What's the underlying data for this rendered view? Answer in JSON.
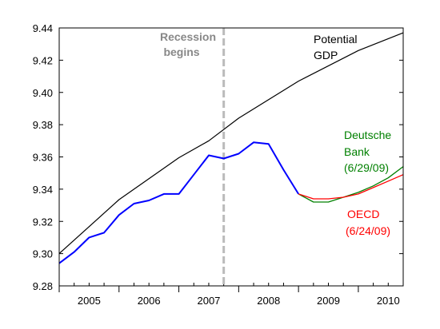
{
  "chart_data": {
    "type": "line",
    "xlim": [
      2005.0,
      2010.75
    ],
    "ylim": [
      9.28,
      9.44
    ],
    "y_ticks": [
      "9.28",
      "9.30",
      "9.32",
      "9.34",
      "9.36",
      "9.38",
      "9.40",
      "9.42",
      "9.44"
    ],
    "x_tick_labels": [
      {
        "label": "2005",
        "x": 2005.5
      },
      {
        "label": "2006",
        "x": 2006.5
      },
      {
        "label": "2007",
        "x": 2007.5
      },
      {
        "label": "2008",
        "x": 2008.5
      },
      {
        "label": "2009",
        "x": 2009.5
      },
      {
        "label": "2010",
        "x": 2010.5
      }
    ],
    "grid": false,
    "series": [
      {
        "key": "potential",
        "color": "#000000",
        "x": [
          2005.0,
          2006.0,
          2007.0,
          2007.5,
          2008.0,
          2009.0,
          2010.0,
          2010.75
        ],
        "y": [
          9.3,
          9.3335,
          9.3595,
          9.37,
          9.384,
          9.407,
          9.426,
          9.437
        ]
      },
      {
        "key": "actual",
        "color": "#0000ff",
        "x": [
          2005.0,
          2005.25,
          2005.5,
          2005.75,
          2006.0,
          2006.25,
          2006.5,
          2006.75,
          2007.0,
          2007.25,
          2007.5,
          2007.75,
          2008.0,
          2008.25,
          2008.5,
          2008.75,
          2009.0
        ],
        "y": [
          9.294,
          9.301,
          9.31,
          9.313,
          9.324,
          9.331,
          9.333,
          9.337,
          9.337,
          9.349,
          9.361,
          9.359,
          9.362,
          9.369,
          9.368,
          9.352,
          9.337
        ]
      },
      {
        "key": "deutsche",
        "color": "#008000",
        "x": [
          2009.0,
          2009.25,
          2009.5,
          2009.75,
          2010.0,
          2010.25,
          2010.5,
          2010.75
        ],
        "y": [
          9.337,
          9.332,
          9.332,
          9.335,
          9.338,
          9.342,
          9.347,
          9.354
        ]
      },
      {
        "key": "oecd",
        "color": "#ff0000",
        "x": [
          2009.0,
          2009.25,
          2009.5,
          2009.75,
          2010.0,
          2010.25,
          2010.5,
          2010.75
        ],
        "y": [
          9.337,
          9.334,
          9.334,
          9.335,
          9.337,
          9.341,
          9.345,
          9.349
        ]
      }
    ],
    "recession_line": {
      "x": 2007.75,
      "color": "#bbbbbb"
    },
    "annotations": {
      "recession_line1": "Recession",
      "recession_line2": "begins",
      "potential_line1": "Potential",
      "potential_line2": "GDP",
      "deutsche_line1": "Deutsche",
      "deutsche_line2": "Bank",
      "deutsche_line3": "(6/29/09)",
      "oecd_line1": "OECD",
      "oecd_line2": "(6/24/09)"
    },
    "annotation_colors": {
      "recession": "#888888",
      "potential": "#000000",
      "deutsche": "#008000",
      "oecd": "#ff0000"
    }
  }
}
